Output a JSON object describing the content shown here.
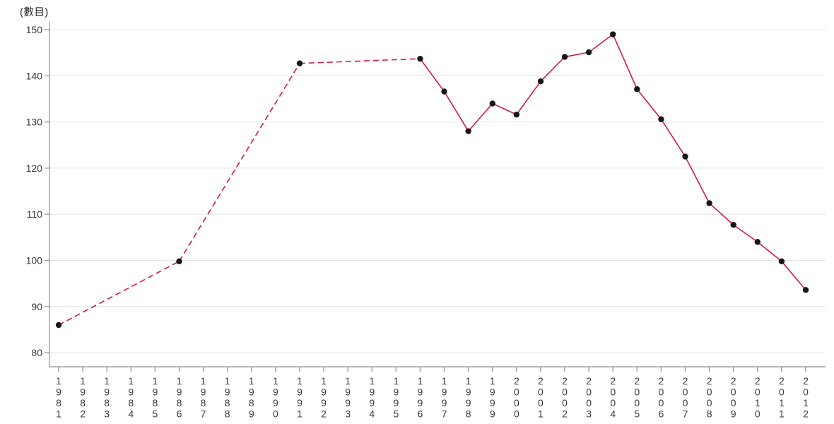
{
  "chart_data": {
    "type": "line",
    "title": "",
    "ylabel": "(數目)",
    "xlabel": "",
    "ylim": [
      80,
      150
    ],
    "y_ticks": [
      80,
      90,
      100,
      110,
      120,
      130,
      140,
      150
    ],
    "categories": [
      "1981",
      "1982",
      "1983",
      "1984",
      "1985",
      "1986",
      "1987",
      "1988",
      "1989",
      "1990",
      "1991",
      "1992",
      "1993",
      "1994",
      "1995",
      "1996",
      "1997",
      "1998",
      "1999",
      "2000",
      "2001",
      "2002",
      "2003",
      "2004",
      "2005",
      "2006",
      "2007",
      "2008",
      "2009",
      "2010",
      "2011",
      "2012"
    ],
    "grid": "horizontal-only",
    "legend": "none",
    "series": [
      {
        "name": "數目",
        "line_color": "#d81748",
        "marker": "black-dot",
        "marker_color": "#151515",
        "dashed_through_year": "1996",
        "points": [
          {
            "year": "1981",
            "value": 86.0
          },
          {
            "year": "1986",
            "value": 99.8
          },
          {
            "year": "1991",
            "value": 142.7
          },
          {
            "year": "1996",
            "value": 143.7
          },
          {
            "year": "1997",
            "value": 136.6
          },
          {
            "year": "1998",
            "value": 128.0
          },
          {
            "year": "1999",
            "value": 134.0
          },
          {
            "year": "2000",
            "value": 131.6
          },
          {
            "year": "2001",
            "value": 138.8
          },
          {
            "year": "2002",
            "value": 144.1
          },
          {
            "year": "2003",
            "value": 145.1
          },
          {
            "year": "2004",
            "value": 149.0
          },
          {
            "year": "2005",
            "value": 137.1
          },
          {
            "year": "2006",
            "value": 130.6
          },
          {
            "year": "2007",
            "value": 122.5
          },
          {
            "year": "2008",
            "value": 112.4
          },
          {
            "year": "2009",
            "value": 107.7
          },
          {
            "year": "2010",
            "value": 104.0
          },
          {
            "year": "2011",
            "value": 99.8
          },
          {
            "year": "2012",
            "value": 93.6
          }
        ]
      }
    ],
    "style": {
      "axis_color": "#9e9e9e",
      "grid_color": "#e4e4e4",
      "tick_label_color": "#3a3a3a",
      "background": "#ffffff"
    }
  }
}
